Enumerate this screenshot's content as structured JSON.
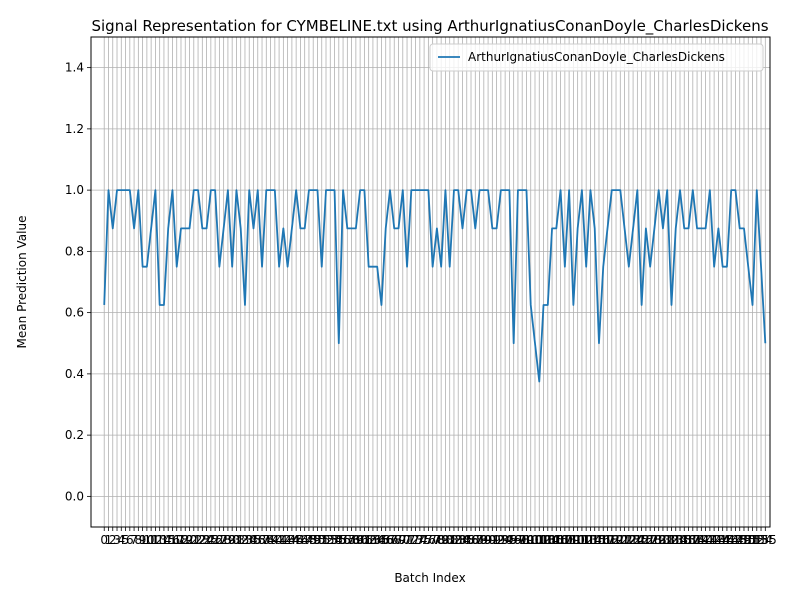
{
  "chart_data": {
    "type": "line",
    "title": "Signal Representation for CYMBELINE.txt using ArthurIgnatiusConanDoyle_CharlesDickens",
    "xlabel": "Batch Index",
    "ylabel": "Mean Prediction Value",
    "xlim": [
      -3.1,
      156.1
    ],
    "ylim": [
      -0.1,
      1.5
    ],
    "yticks": [
      0.0,
      0.2,
      0.4,
      0.6,
      0.8,
      1.0,
      1.2,
      1.4
    ],
    "grid": true,
    "legend_position": "top-right",
    "color": "#1f77b4",
    "series": [
      {
        "name": "ArthurIgnatiusConanDoyle_CharlesDickens",
        "values": [
          0.625,
          1.0,
          0.875,
          1.0,
          1.0,
          1.0,
          1.0,
          0.875,
          1.0,
          0.75,
          0.75,
          0.875,
          1.0,
          0.625,
          0.625,
          0.875,
          1.0,
          0.75,
          0.875,
          0.875,
          0.875,
          1.0,
          1.0,
          0.875,
          0.875,
          1.0,
          1.0,
          0.75,
          0.875,
          1.0,
          0.75,
          1.0,
          0.875,
          0.625,
          1.0,
          0.875,
          1.0,
          0.75,
          1.0,
          1.0,
          1.0,
          0.75,
          0.875,
          0.75,
          0.875,
          1.0,
          0.875,
          0.875,
          1.0,
          1.0,
          1.0,
          0.75,
          1.0,
          1.0,
          1.0,
          0.5,
          1.0,
          0.875,
          0.875,
          0.875,
          1.0,
          1.0,
          0.75,
          0.75,
          0.75,
          0.625,
          0.875,
          1.0,
          0.875,
          0.875,
          1.0,
          0.75,
          1.0,
          1.0,
          1.0,
          1.0,
          1.0,
          0.75,
          0.875,
          0.75,
          1.0,
          0.75,
          1.0,
          1.0,
          0.875,
          1.0,
          1.0,
          0.875,
          1.0,
          1.0,
          1.0,
          0.875,
          0.875,
          1.0,
          1.0,
          1.0,
          0.5,
          1.0,
          1.0,
          1.0,
          0.625,
          0.5,
          0.375,
          0.625,
          0.625,
          0.875,
          0.875,
          1.0,
          0.75,
          1.0,
          0.625,
          0.875,
          1.0,
          0.75,
          1.0,
          0.875,
          0.5,
          0.75,
          0.875,
          1.0,
          1.0,
          1.0,
          0.875,
          0.75,
          0.875,
          1.0,
          0.625,
          0.875,
          0.75,
          0.875,
          1.0,
          0.875,
          1.0,
          0.625,
          0.875,
          1.0,
          0.875,
          0.875,
          1.0,
          0.875,
          0.875,
          0.875,
          1.0,
          0.75,
          0.875,
          0.75,
          0.75,
          1.0,
          1.0,
          0.875,
          0.875,
          0.75,
          0.625,
          1.0,
          0.75,
          0.5
        ]
      }
    ]
  }
}
